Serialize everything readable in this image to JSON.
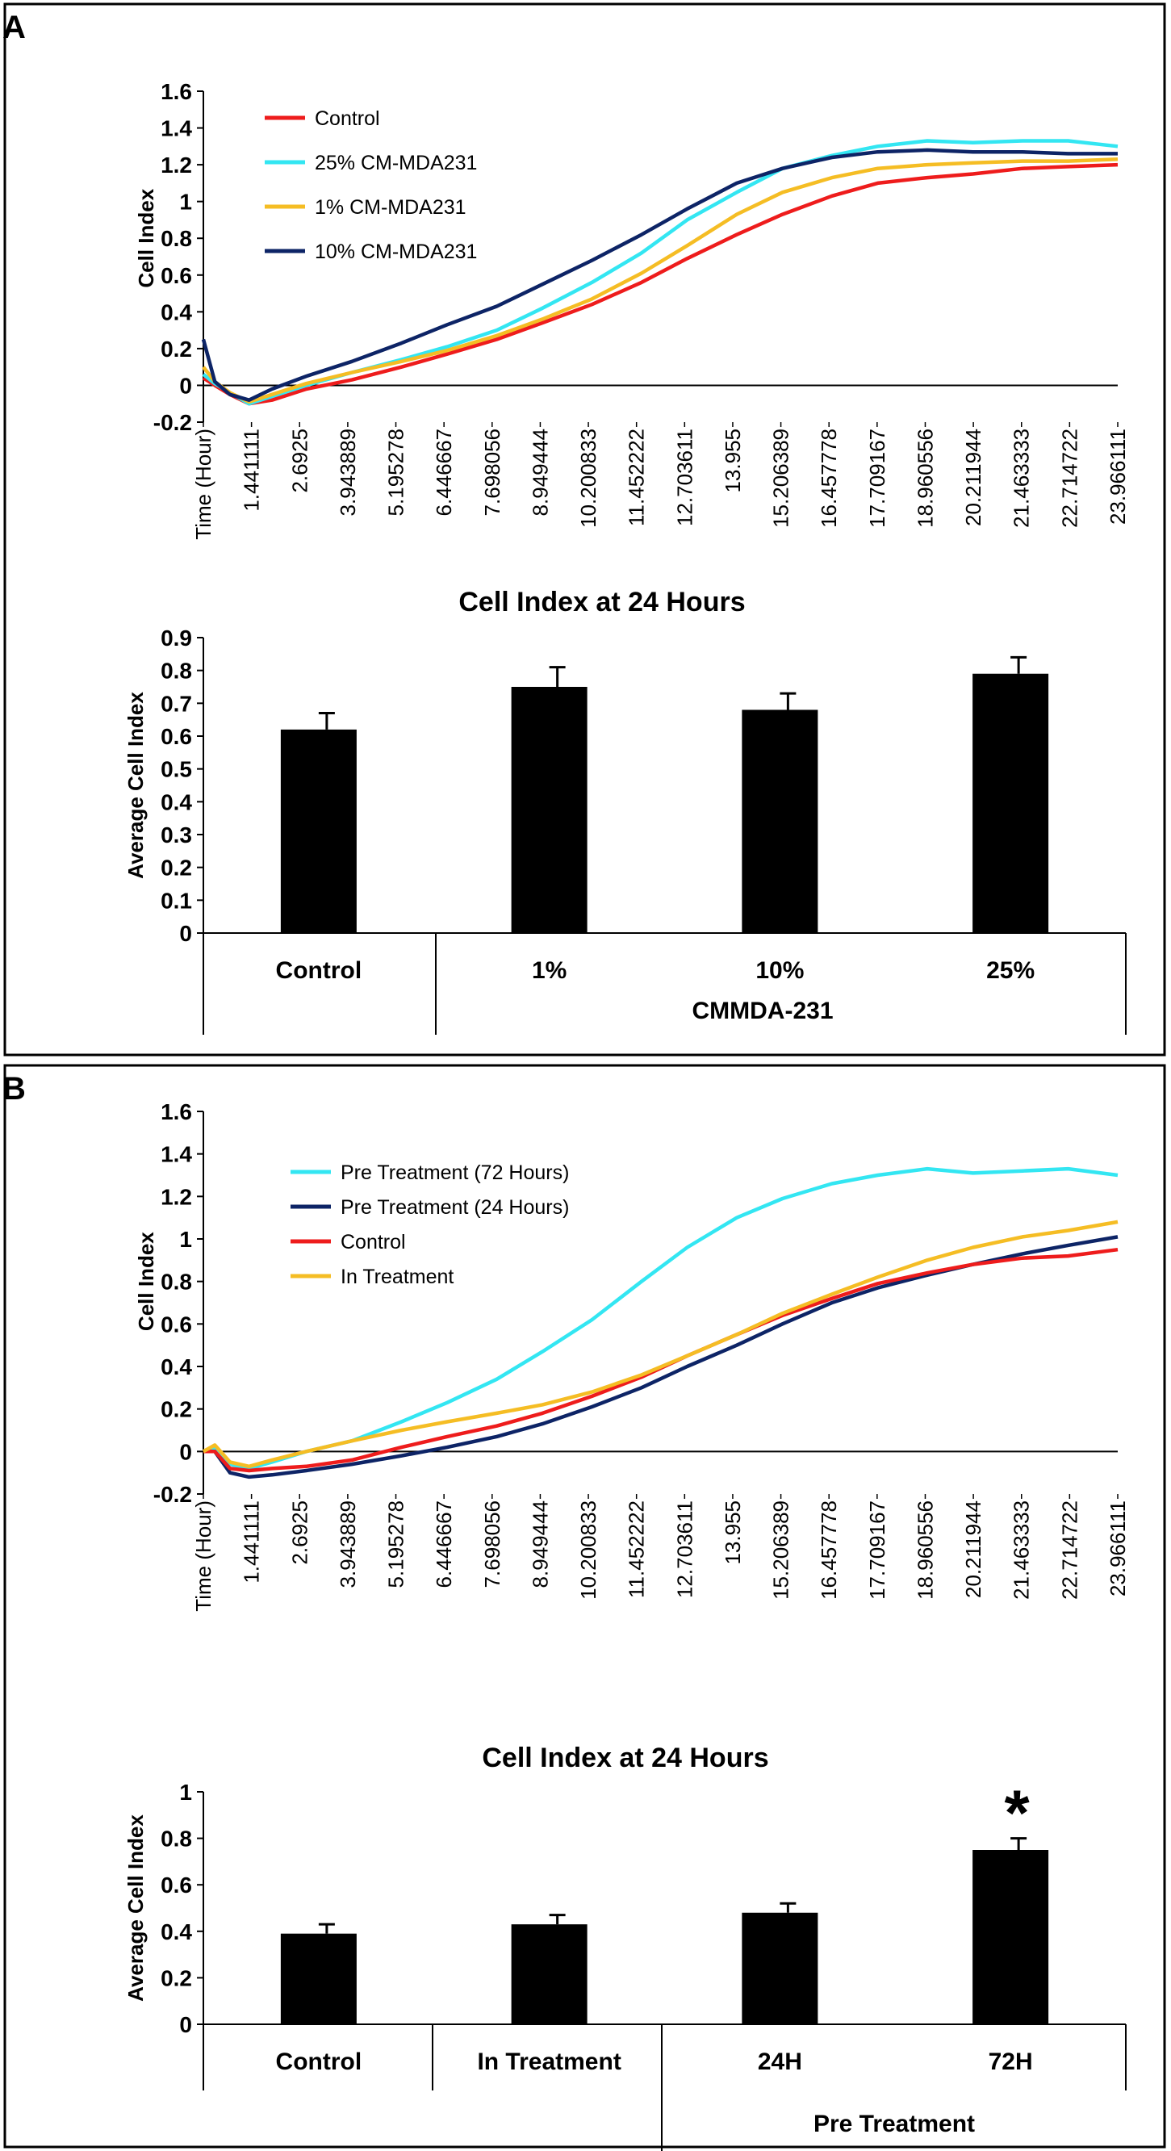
{
  "panels": [
    {
      "letter": "A",
      "line_chart": {
        "type": "line",
        "ylabel": "Cell Index",
        "xlabel": "Time (Hour)",
        "ylim": [
          -0.2,
          1.6
        ],
        "yticks": [
          "1.6",
          "1.4",
          "1.2",
          "1",
          "0.8",
          "0.6",
          "0.4",
          "0.2",
          "0",
          "-0.2"
        ],
        "xticks": [
          "Time (Hour)",
          "1.441111",
          "2.6925",
          "3.943889",
          "5.195278",
          "6.446667",
          "7.698056",
          "8.949444",
          "10.200833",
          "11.452222",
          "12.703611",
          "13.955",
          "15.206389",
          "16.457778",
          "17.709167",
          "18.960556",
          "20.211944",
          "21.463333",
          "22.714722",
          "23.966111"
        ],
        "series": [
          {
            "name": "Control",
            "color": "#ee1c1c",
            "x": [
              0,
              0.3,
              0.7,
              1.2,
              1.8,
              2.7,
              3.9,
              5.2,
              6.4,
              7.7,
              8.9,
              10.2,
              11.5,
              12.7,
              14.0,
              15.2,
              16.5,
              17.7,
              19.0,
              20.2,
              21.5,
              22.7,
              24.0
            ],
            "y": [
              0.04,
              0.0,
              -0.05,
              -0.1,
              -0.08,
              -0.02,
              0.03,
              0.1,
              0.17,
              0.25,
              0.34,
              0.44,
              0.56,
              0.69,
              0.82,
              0.93,
              1.03,
              1.1,
              1.13,
              1.15,
              1.18,
              1.19,
              1.2
            ]
          },
          {
            "name": "25% CM-MDA231",
            "color": "#33e6f2",
            "x": [
              0,
              0.3,
              0.7,
              1.2,
              1.8,
              2.7,
              3.9,
              5.2,
              6.4,
              7.7,
              8.9,
              10.2,
              11.5,
              12.7,
              14.0,
              15.2,
              16.5,
              17.7,
              19.0,
              20.2,
              21.5,
              22.7,
              24.0
            ],
            "y": [
              0.06,
              0.01,
              -0.04,
              -0.1,
              -0.06,
              0.0,
              0.07,
              0.14,
              0.21,
              0.3,
              0.42,
              0.56,
              0.72,
              0.9,
              1.05,
              1.18,
              1.25,
              1.3,
              1.33,
              1.32,
              1.33,
              1.33,
              1.3
            ]
          },
          {
            "name": "1% CM-MDA231",
            "color": "#f5bd24",
            "x": [
              0,
              0.3,
              0.7,
              1.2,
              1.8,
              2.7,
              3.9,
              5.2,
              6.4,
              7.7,
              8.9,
              10.2,
              11.5,
              12.7,
              14.0,
              15.2,
              16.5,
              17.7,
              19.0,
              20.2,
              21.5,
              22.7,
              24.0
            ],
            "y": [
              0.1,
              0.02,
              -0.04,
              -0.09,
              -0.05,
              0.01,
              0.07,
              0.13,
              0.19,
              0.27,
              0.36,
              0.47,
              0.61,
              0.76,
              0.93,
              1.05,
              1.13,
              1.18,
              1.2,
              1.21,
              1.22,
              1.22,
              1.23
            ]
          },
          {
            "name": "10% CM-MDA231",
            "color": "#0d2466",
            "x": [
              0,
              0.3,
              0.7,
              1.2,
              1.8,
              2.7,
              3.9,
              5.2,
              6.4,
              7.7,
              8.9,
              10.2,
              11.5,
              12.7,
              14.0,
              15.2,
              16.5,
              17.7,
              19.0,
              20.2,
              21.5,
              22.7,
              24.0
            ],
            "y": [
              0.25,
              0.02,
              -0.05,
              -0.08,
              -0.02,
              0.05,
              0.13,
              0.23,
              0.33,
              0.43,
              0.55,
              0.68,
              0.82,
              0.96,
              1.1,
              1.18,
              1.24,
              1.27,
              1.28,
              1.27,
              1.27,
              1.26,
              1.26
            ]
          }
        ]
      },
      "bar_chart": {
        "type": "bar",
        "title": "Cell Index at 24 Hours",
        "ylabel": "Average Cell Index",
        "ylim": [
          0,
          0.9
        ],
        "yticks": [
          "0.9",
          "0.8",
          "0.7",
          "0.6",
          "0.5",
          "0.4",
          "0.3",
          "0.2",
          "0.1",
          "0"
        ],
        "categories": [
          "Control",
          "1%",
          "10%",
          "25%"
        ],
        "values": [
          0.62,
          0.75,
          0.68,
          0.79
        ],
        "errors": [
          0.05,
          0.06,
          0.05,
          0.05
        ],
        "group_label": "CMMDA-231",
        "significance": [
          "",
          "",
          "",
          ""
        ]
      }
    },
    {
      "letter": "B",
      "line_chart": {
        "type": "line",
        "ylabel": "Cell Index",
        "xlabel": "Time (Hour)",
        "ylim": [
          -0.2,
          1.6
        ],
        "yticks": [
          "1.6",
          "1.4",
          "1.2",
          "1",
          "0.8",
          "0.6",
          "0.4",
          "0.2",
          "0",
          "-0.2"
        ],
        "xticks": [
          "Time (Hour)",
          "1.441111",
          "2.6925",
          "3.943889",
          "5.195278",
          "6.446667",
          "7.698056",
          "8.949444",
          "10.200833",
          "11.452222",
          "12.703611",
          "13.955",
          "15.206389",
          "16.457778",
          "17.709167",
          "18.960556",
          "20.211944",
          "21.463333",
          "22.714722",
          "23.966111"
        ],
        "series": [
          {
            "name": "Pre Treatment (72 Hours)",
            "color": "#33e6f2",
            "x": [
              0,
              0.3,
              0.7,
              1.2,
              1.8,
              2.7,
              3.9,
              5.2,
              6.4,
              7.7,
              8.9,
              10.2,
              11.5,
              12.7,
              14.0,
              15.2,
              16.5,
              17.7,
              19.0,
              20.2,
              21.5,
              22.7,
              24.0
            ],
            "y": [
              0.0,
              0.02,
              -0.06,
              -0.08,
              -0.05,
              0.0,
              0.05,
              0.14,
              0.23,
              0.34,
              0.47,
              0.62,
              0.8,
              0.96,
              1.1,
              1.19,
              1.26,
              1.3,
              1.33,
              1.31,
              1.32,
              1.33,
              1.3
            ]
          },
          {
            "name": "Pre Treatment (24 Hours)",
            "color": "#0d2466",
            "x": [
              0,
              0.3,
              0.7,
              1.2,
              1.8,
              2.7,
              3.9,
              5.2,
              6.4,
              7.7,
              8.9,
              10.2,
              11.5,
              12.7,
              14.0,
              15.2,
              16.5,
              17.7,
              19.0,
              20.2,
              21.5,
              22.7,
              24.0
            ],
            "y": [
              0.0,
              0.0,
              -0.1,
              -0.12,
              -0.11,
              -0.09,
              -0.06,
              -0.02,
              0.02,
              0.07,
              0.13,
              0.21,
              0.3,
              0.4,
              0.5,
              0.6,
              0.7,
              0.77,
              0.83,
              0.88,
              0.93,
              0.97,
              1.01
            ]
          },
          {
            "name": "Control",
            "color": "#ee1c1c",
            "x": [
              0,
              0.3,
              0.7,
              1.2,
              1.8,
              2.7,
              3.9,
              5.2,
              6.4,
              7.7,
              8.9,
              10.2,
              11.5,
              12.7,
              14.0,
              15.2,
              16.5,
              17.7,
              19.0,
              20.2,
              21.5,
              22.7,
              24.0
            ],
            "y": [
              0.0,
              0.0,
              -0.08,
              -0.09,
              -0.08,
              -0.07,
              -0.04,
              0.02,
              0.07,
              0.12,
              0.18,
              0.26,
              0.35,
              0.45,
              0.55,
              0.64,
              0.72,
              0.79,
              0.84,
              0.88,
              0.91,
              0.92,
              0.95
            ]
          },
          {
            "name": "In Treatment",
            "color": "#f5bd24",
            "x": [
              0,
              0.3,
              0.7,
              1.2,
              1.8,
              2.7,
              3.9,
              5.2,
              6.4,
              7.7,
              8.9,
              10.2,
              11.5,
              12.7,
              14.0,
              15.2,
              16.5,
              17.7,
              19.0,
              20.2,
              21.5,
              22.7,
              24.0
            ],
            "y": [
              0.0,
              0.03,
              -0.05,
              -0.07,
              -0.04,
              0.0,
              0.05,
              0.1,
              0.14,
              0.18,
              0.22,
              0.28,
              0.36,
              0.45,
              0.55,
              0.65,
              0.74,
              0.82,
              0.9,
              0.96,
              1.01,
              1.04,
              1.08
            ]
          }
        ]
      },
      "bar_chart": {
        "type": "bar",
        "title": "Cell Index at 24 Hours",
        "ylabel": "Average Cell Index",
        "ylim": [
          0,
          1
        ],
        "yticks": [
          "1",
          "0.8",
          "0.6",
          "0.4",
          "0.2",
          "0"
        ],
        "categories": [
          "Control",
          "In Treatment",
          "24H",
          "72H"
        ],
        "values": [
          0.39,
          0.43,
          0.48,
          0.75
        ],
        "errors": [
          0.04,
          0.04,
          0.04,
          0.05
        ],
        "group_label": "Pre Treatment",
        "significance": [
          "",
          "",
          "",
          "*"
        ]
      }
    }
  ],
  "chart_data": [
    {
      "type": "line",
      "panel": "A",
      "title": "",
      "xlabel": "Time (Hour)",
      "ylabel": "Cell Index",
      "ylim": [
        -0.2,
        1.6
      ]
    },
    {
      "type": "bar",
      "panel": "A",
      "title": "Cell Index at 24 Hours",
      "ylabel": "Average Cell Index",
      "categories": [
        "Control",
        "1%",
        "10%",
        "25%"
      ],
      "values": [
        0.62,
        0.75,
        0.68,
        0.79
      ],
      "ylim": [
        0,
        0.9
      ]
    },
    {
      "type": "line",
      "panel": "B",
      "title": "",
      "xlabel": "Time (Hour)",
      "ylabel": "Cell Index",
      "ylim": [
        -0.2,
        1.6
      ]
    },
    {
      "type": "bar",
      "panel": "B",
      "title": "Cell Index at 24 Hours",
      "ylabel": "Average Cell Index",
      "categories": [
        "Control",
        "In Treatment",
        "24H",
        "72H"
      ],
      "values": [
        0.39,
        0.43,
        0.48,
        0.75
      ],
      "ylim": [
        0,
        1
      ]
    }
  ]
}
